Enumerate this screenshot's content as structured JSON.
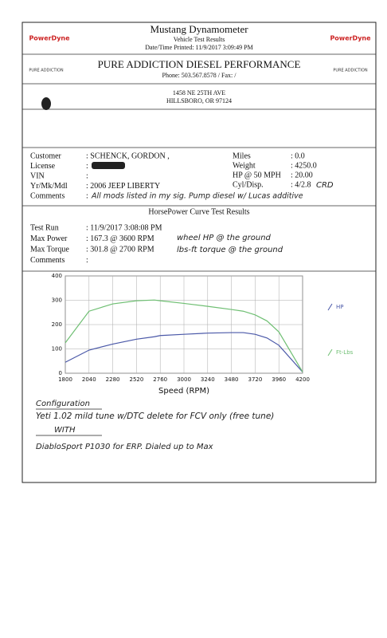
{
  "header": {
    "title": "Mustang Dynamometer",
    "subtitle": "Vehicle Test Results",
    "printed": "Date/Time Printed: 11/9/2017 3:09:49 PM",
    "logo": "PowerDyne",
    "shop_logo": "PURE ADDICTION",
    "shop": "PURE ADDICTION DIESEL PERFORMANCE",
    "phone": "Phone: 503.567.8578 /  Fax:  /",
    "address1": "1458 NE 25TH AVE",
    "address2": "HILLSBORO, OR  97124"
  },
  "vehicle": {
    "left": [
      {
        "label": "Customer",
        "value": ": SCHENCK, GORDON ,"
      },
      {
        "label": "License",
        "value": ":"
      },
      {
        "label": "VIN",
        "value": ":"
      },
      {
        "label": "Yr/Mk/Mdl",
        "value": ": 2006 JEEP LIBERTY"
      },
      {
        "label": "Comments",
        "value": ":"
      }
    ],
    "right": [
      {
        "label": "Miles",
        "value": ": 0.0"
      },
      {
        "label": "Weight",
        "value": ": 4250.0"
      },
      {
        "label": "HP @ 50 MPH",
        "value": ": 20.00"
      },
      {
        "label": "Cyl/Disp.",
        "value": ": 4/2.8"
      }
    ]
  },
  "section_title": "HorsePower Curve Test Results",
  "results": [
    {
      "label": "Test Run",
      "value": ": 11/9/2017 3:08:08 PM"
    },
    {
      "label": "Max Power",
      "value": ": 167.3    @ 3600  RPM"
    },
    {
      "label": "Max Torque",
      "value": ": 301.8    @ 2700  RPM"
    },
    {
      "label": "Comments",
      "value": ":"
    }
  ],
  "handwriting": {
    "engine": "CRD",
    "comments": "All mods listed in my sig.  Pump diesel w/ Lucas additive",
    "power_note": "wheel HP @ the ground",
    "torque_note": "lbs-ft torque @ the ground",
    "config_title": "Configuration",
    "config1": "Yeti 1.02 mild tune w/DTC delete for FCV only (free tune)",
    "config2": "WITH",
    "config3": "DiabloSport P1030 for ERP. Dialed up to Max"
  },
  "chart": {
    "type": "line",
    "xlabel": "Speed (RPM)",
    "x": [
      1800,
      2040,
      2280,
      2520,
      2700,
      2760,
      3000,
      3240,
      3480,
      3600,
      3720,
      3840,
      3960,
      4200
    ],
    "series": [
      {
        "name": "HP",
        "color": "#4a58a8",
        "values": [
          45,
          95,
          120,
          140,
          150,
          155,
          160,
          165,
          167,
          167,
          160,
          145,
          115,
          5
        ]
      },
      {
        "name": "Ft-Lbs",
        "color": "#6fbf73",
        "values": [
          125,
          255,
          285,
          298,
          301,
          298,
          287,
          275,
          262,
          255,
          240,
          215,
          170,
          5
        ]
      }
    ],
    "xlim": [
      1800,
      4200
    ],
    "xticks": [
      1800,
      2040,
      2280,
      2520,
      2760,
      3000,
      3240,
      3480,
      3720,
      3960,
      4200
    ],
    "ylim": [
      0,
      400
    ],
    "yticks": [
      0,
      100,
      200,
      300,
      400
    ],
    "grid": true
  }
}
